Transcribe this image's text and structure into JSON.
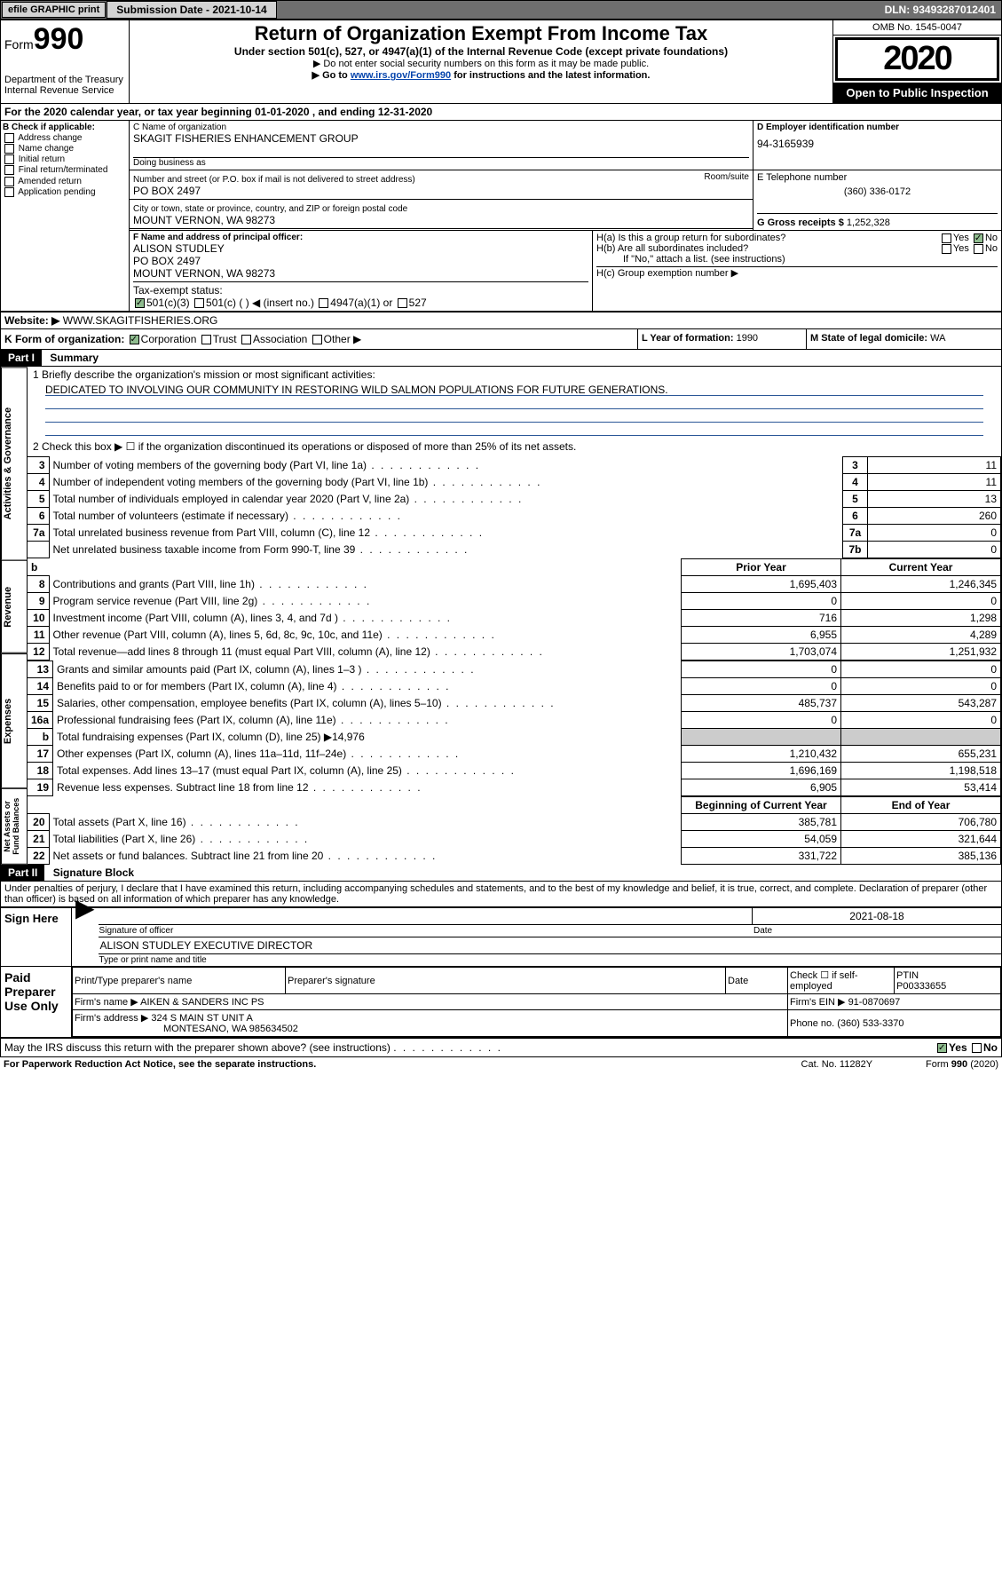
{
  "topbar": {
    "efile": "efile GRAPHIC print",
    "submission_lbl": "Submission Date - 2021-10-14",
    "dln": "DLN: 93493287012401"
  },
  "header": {
    "form_prefix": "Form",
    "form_no": "990",
    "title": "Return of Organization Exempt From Income Tax",
    "subtitle": "Under section 501(c), 527, or 4947(a)(1) of the Internal Revenue Code (except private foundations)",
    "note1": "▶ Do not enter social security numbers on this form as it may be made public.",
    "note2_pre": "▶ Go to ",
    "note2_link": "www.irs.gov/Form990",
    "note2_post": " for instructions and the latest information.",
    "dept": "Department of the Treasury\nInternal Revenue Service",
    "omb": "OMB No. 1545-0047",
    "year": "2020",
    "otpi": "Open to Public Inspection"
  },
  "period": {
    "line": "For the 2020 calendar year, or tax year beginning 01-01-2020    , and ending 12-31-2020"
  },
  "B": {
    "title": "B Check if applicable:",
    "opts": [
      "Address change",
      "Name change",
      "Initial return",
      "Final return/terminated",
      "Amended return",
      "Application pending"
    ]
  },
  "C": {
    "lbl": "C Name of organization",
    "name": "SKAGIT FISHERIES ENHANCEMENT GROUP",
    "dba_lbl": "Doing business as",
    "dba": "",
    "addr_lbl": "Number and street (or P.O. box if mail is not delivered to street address)",
    "room_lbl": "Room/suite",
    "addr": "PO BOX 2497",
    "city_lbl": "City or town, state or province, country, and ZIP or foreign postal code",
    "city": "MOUNT VERNON, WA  98273"
  },
  "D": {
    "lbl": "D Employer identification number",
    "val": "94-3165939"
  },
  "E": {
    "lbl": "E Telephone number",
    "val": "(360) 336-0172"
  },
  "G": {
    "lbl": "G Gross receipts $",
    "val": "1,252,328"
  },
  "F": {
    "lbl": "F  Name and address of principal officer:",
    "name": "ALISON STUDLEY",
    "addr1": "PO BOX 2497",
    "addr2": "MOUNT VERNON, WA  98273"
  },
  "H": {
    "a": "H(a)  Is this a group return for subordinates?",
    "b": "H(b)  Are all subordinates included?",
    "note": "If \"No,\" attach a list. (see instructions)",
    "c": "H(c)  Group exemption number ▶"
  },
  "I": {
    "lbl": "Tax-exempt status:",
    "c3": "501(c)(3)",
    "c": "501(c) (   ) ◀ (insert no.)",
    "a1": "4947(a)(1) or",
    "s527": "527"
  },
  "J": {
    "lbl": "Website: ▶",
    "val": "  WWW.SKAGITFISHERIES.ORG"
  },
  "K": {
    "lbl": "K Form of organization:",
    "corp": "Corporation",
    "trust": "Trust",
    "assoc": "Association",
    "other": "Other ▶"
  },
  "L": {
    "lbl": "L Year of formation:",
    "val": "1990"
  },
  "M": {
    "lbl": "M State of legal domicile:",
    "val": "WA"
  },
  "partI": {
    "hdr": "Part I",
    "title": "Summary",
    "q1": "1  Briefly describe the organization's mission or most significant activities:",
    "mission": "DEDICATED TO INVOLVING OUR COMMUNITY IN RESTORING WILD SALMON POPULATIONS FOR FUTURE GENERATIONS.",
    "q2": "2   Check this box ▶ ☐  if the organization discontinued its operations or disposed of more than 25% of its net assets.",
    "rows_gov": [
      {
        "n": "3",
        "t": "Number of voting members of the governing body (Part VI, line 1a)",
        "box": "3",
        "v": "11"
      },
      {
        "n": "4",
        "t": "Number of independent voting members of the governing body (Part VI, line 1b)",
        "box": "4",
        "v": "11"
      },
      {
        "n": "5",
        "t": "Total number of individuals employed in calendar year 2020 (Part V, line 2a)",
        "box": "5",
        "v": "13"
      },
      {
        "n": "6",
        "t": "Total number of volunteers (estimate if necessary)",
        "box": "6",
        "v": "260"
      },
      {
        "n": "7a",
        "t": "Total unrelated business revenue from Part VIII, column (C), line 12",
        "box": "7a",
        "v": "0"
      },
      {
        "n": "",
        "t": "Net unrelated business taxable income from Form 990-T, line 39",
        "box": "7b",
        "v": "0"
      }
    ],
    "col_hdr": {
      "b": "b",
      "prior": "Prior Year",
      "curr": "Current Year"
    },
    "revenue": [
      {
        "n": "8",
        "t": "Contributions and grants (Part VIII, line 1h)",
        "p": "1,695,403",
        "c": "1,246,345"
      },
      {
        "n": "9",
        "t": "Program service revenue (Part VIII, line 2g)",
        "p": "0",
        "c": "0"
      },
      {
        "n": "10",
        "t": "Investment income (Part VIII, column (A), lines 3, 4, and 7d )",
        "p": "716",
        "c": "1,298"
      },
      {
        "n": "11",
        "t": "Other revenue (Part VIII, column (A), lines 5, 6d, 8c, 9c, 10c, and 11e)",
        "p": "6,955",
        "c": "4,289"
      },
      {
        "n": "12",
        "t": "Total revenue—add lines 8 through 11 (must equal Part VIII, column (A), line 12)",
        "p": "1,703,074",
        "c": "1,251,932"
      }
    ],
    "expenses": [
      {
        "n": "13",
        "t": "Grants and similar amounts paid (Part IX, column (A), lines 1–3 )",
        "p": "0",
        "c": "0"
      },
      {
        "n": "14",
        "t": "Benefits paid to or for members (Part IX, column (A), line 4)",
        "p": "0",
        "c": "0"
      },
      {
        "n": "15",
        "t": "Salaries, other compensation, employee benefits (Part IX, column (A), lines 5–10)",
        "p": "485,737",
        "c": "543,287"
      },
      {
        "n": "16a",
        "t": "Professional fundraising fees (Part IX, column (A), line 11e)",
        "p": "0",
        "c": "0"
      },
      {
        "n": "b",
        "t": "Total fundraising expenses (Part IX, column (D), line 25) ▶14,976",
        "p": "",
        "c": "",
        "grey": true
      },
      {
        "n": "17",
        "t": "Other expenses (Part IX, column (A), lines 11a–11d, 11f–24e)",
        "p": "1,210,432",
        "c": "655,231"
      },
      {
        "n": "18",
        "t": "Total expenses. Add lines 13–17 (must equal Part IX, column (A), line 25)",
        "p": "1,696,169",
        "c": "1,198,518"
      },
      {
        "n": "19",
        "t": "Revenue less expenses. Subtract line 18 from line 12",
        "p": "6,905",
        "c": "53,414"
      }
    ],
    "na_hdr": {
      "begin": "Beginning of Current Year",
      "end": "End of Year"
    },
    "netassets": [
      {
        "n": "20",
        "t": "Total assets (Part X, line 16)",
        "p": "385,781",
        "c": "706,780"
      },
      {
        "n": "21",
        "t": "Total liabilities (Part X, line 26)",
        "p": "54,059",
        "c": "321,644"
      },
      {
        "n": "22",
        "t": "Net assets or fund balances. Subtract line 21 from line 20",
        "p": "331,722",
        "c": "385,136"
      }
    ]
  },
  "partII": {
    "hdr": "Part II",
    "title": "Signature Block",
    "decl": "Under penalties of perjury, I declare that I have examined this return, including accompanying schedules and statements, and to the best of my knowledge and belief, it is true, correct, and complete. Declaration of preparer (other than officer) is based on all information of which preparer has any knowledge.",
    "sign_here": "Sign Here",
    "sig_date": "2021-08-18",
    "sig_of": "Signature of officer",
    "date_lbl": "Date",
    "officer": "ALISON STUDLEY EXECUTIVE DIRECTOR",
    "officer_lbl": "Type or print name and title",
    "paid": "Paid Preparer Use Only",
    "prep_name_lbl": "Print/Type preparer's name",
    "prep_sig_lbl": "Preparer's signature",
    "date2": "Date",
    "check_lbl": "Check ☐ if self-employed",
    "ptin_lbl": "PTIN",
    "ptin": "P00333655",
    "firm_name_lbl": "Firm's name    ▶",
    "firm_name": "AIKEN & SANDERS INC PS",
    "firm_ein_lbl": "Firm's EIN ▶",
    "firm_ein": "91-0870697",
    "firm_addr_lbl": "Firm's address ▶",
    "firm_addr": "324 S MAIN ST UNIT A",
    "firm_city": "MONTESANO, WA  985634502",
    "phone_lbl": "Phone no.",
    "phone": "(360) 533-3370",
    "discuss": "May the IRS discuss this return with the preparer shown above? (see instructions)"
  },
  "footer": {
    "pra": "For Paperwork Reduction Act Notice, see the separate instructions.",
    "cat": "Cat. No. 11282Y",
    "form": "Form 990 (2020)"
  },
  "side": {
    "gov": "Activities & Governance",
    "rev": "Revenue",
    "exp": "Expenses",
    "net": "Net Assets or Fund Balances"
  }
}
